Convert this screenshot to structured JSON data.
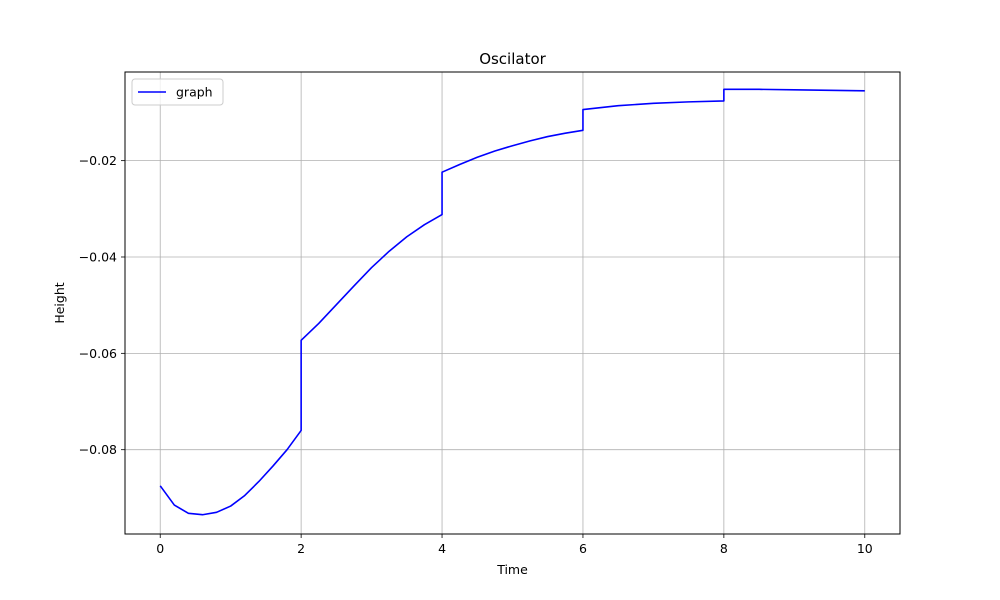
{
  "chart_data": {
    "type": "line",
    "title": "Oscilator",
    "xlabel": "Time",
    "ylabel": "Height",
    "xlim": [
      -0.5,
      10.5
    ],
    "ylim": [
      -0.0975,
      -0.0016
    ],
    "xticks": [
      0,
      2,
      4,
      6,
      8,
      10
    ],
    "xtick_labels": [
      "0",
      "2",
      "4",
      "6",
      "8",
      "10"
    ],
    "yticks": [
      -0.08,
      -0.06,
      -0.04,
      -0.02
    ],
    "ytick_labels": [
      "−0.08",
      "−0.06",
      "−0.04",
      "−0.02"
    ],
    "grid": true,
    "legend_position": "top-left",
    "series": [
      {
        "name": "graph",
        "color": "#0000ff",
        "x": [
          0,
          0.2,
          0.4,
          0.6,
          0.8,
          1.0,
          1.2,
          1.4,
          1.6,
          1.8,
          2.0,
          2.0,
          2.25,
          2.5,
          2.75,
          3.0,
          3.25,
          3.5,
          3.75,
          4.0,
          4.0,
          4.25,
          4.5,
          4.75,
          5.0,
          5.25,
          5.5,
          5.75,
          6.0,
          6.0,
          6.5,
          7.0,
          7.5,
          8.0,
          8.0,
          8.5,
          9.0,
          9.5,
          10.0
        ],
        "y": [
          -0.0875,
          -0.0915,
          -0.0932,
          -0.0935,
          -0.093,
          -0.0917,
          -0.0895,
          -0.0866,
          -0.0834,
          -0.08,
          -0.076,
          -0.0573,
          -0.0538,
          -0.0499,
          -0.046,
          -0.0422,
          -0.0388,
          -0.0358,
          -0.0333,
          -0.0312,
          -0.0224,
          -0.0208,
          -0.0193,
          -0.018,
          -0.0169,
          -0.0159,
          -0.015,
          -0.0143,
          -0.0137,
          -0.0094,
          -0.0086,
          -0.0081,
          -0.0078,
          -0.0076,
          -0.0052,
          -0.0052,
          -0.0053,
          -0.0054,
          -0.0055
        ]
      }
    ]
  }
}
